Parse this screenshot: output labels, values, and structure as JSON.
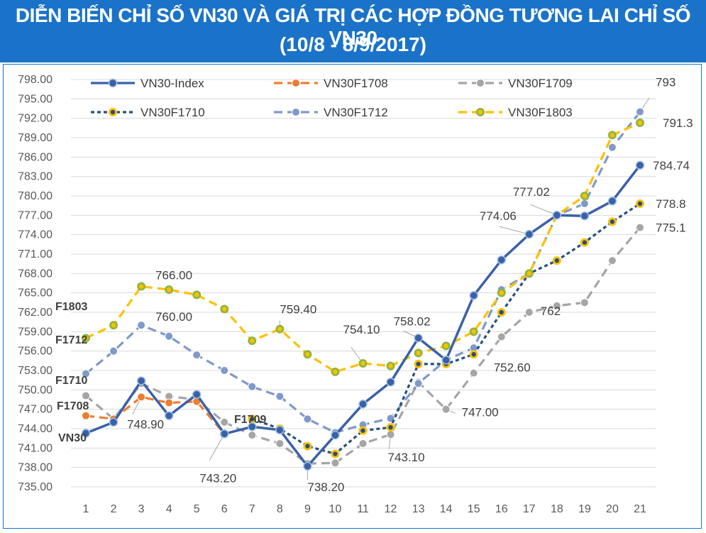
{
  "header": {
    "title_line1": "DIỄN BIẾN CHỈ SỐ VN30 VÀ GIÁ TRỊ CÁC HỢP ĐỒNG TƯƠNG LAI CHỈ SỐ VN30",
    "title_line2": "(10/8 - 8/9/2017)"
  },
  "colors": {
    "header_bg": "#1a73c8",
    "vn30": "#3a61a8",
    "f1708": "#ed7d31",
    "f1709": "#a5a5a5",
    "f1710": "#26507f",
    "f1712": "#7f99c9",
    "f1803": "#ffc000"
  },
  "chart_data": {
    "type": "line",
    "x": [
      1,
      2,
      3,
      4,
      5,
      6,
      7,
      8,
      9,
      10,
      11,
      12,
      13,
      14,
      15,
      16,
      17,
      18,
      19,
      20,
      21
    ],
    "ylim": [
      735,
      798
    ],
    "yticks": [
      "735.00",
      "738.00",
      "741.00",
      "744.00",
      "747.00",
      "750.00",
      "753.00",
      "756.00",
      "759.00",
      "762.00",
      "765.00",
      "768.00",
      "771.00",
      "774.00",
      "777.00",
      "780.00",
      "783.00",
      "786.00",
      "789.00",
      "792.00",
      "795.00",
      "798.00"
    ],
    "xticks": [
      "1",
      "2",
      "3",
      "4",
      "5",
      "6",
      "7",
      "8",
      "9",
      "10",
      "11",
      "12",
      "13",
      "14",
      "15",
      "16",
      "17",
      "18",
      "19",
      "20",
      "21"
    ],
    "legend_position": "top",
    "grid": "horizontal",
    "series": [
      {
        "name": "VN30-Index",
        "key": "vn30",
        "style": "solid",
        "values": [
          743.3,
          745.0,
          751.4,
          746.0,
          749.3,
          743.2,
          744.3,
          743.8,
          738.2,
          743.0,
          747.8,
          751.2,
          758.02,
          754.6,
          764.6,
          770.1,
          774.06,
          777.02,
          776.9,
          779.2,
          784.74
        ]
      },
      {
        "name": "VN30F1708",
        "key": "f1708",
        "style": "dash",
        "values": [
          746.0,
          745.5,
          748.9,
          748.0,
          748.2,
          743.2,
          null,
          null,
          null,
          null,
          null,
          null,
          null,
          null,
          null,
          null,
          null,
          null,
          null,
          null,
          null
        ]
      },
      {
        "name": "VN30F1709",
        "key": "f1709",
        "style": "dash",
        "values": [
          749.1,
          745.5,
          751.0,
          749.0,
          748.5,
          745.0,
          743.0,
          741.7,
          738.6,
          738.7,
          741.7,
          743.1,
          751.2,
          747.0,
          752.6,
          758.2,
          762.0,
          763.0,
          763.5,
          770.0,
          775.1
        ]
      },
      {
        "name": "VN30F1710",
        "key": "f1710",
        "style": "dot",
        "values": [
          null,
          null,
          null,
          null,
          null,
          null,
          745.5,
          744.0,
          741.3,
          740.1,
          743.7,
          744.2,
          754.0,
          754.0,
          755.5,
          762.0,
          768.0,
          770.0,
          772.8,
          776.0,
          778.8
        ]
      },
      {
        "name": "VN30F1712",
        "key": "f1712",
        "style": "dash",
        "values": [
          752.5,
          756.0,
          760.0,
          758.3,
          755.4,
          753.0,
          750.5,
          749.0,
          745.5,
          743.4,
          744.6,
          745.6,
          751.0,
          754.6,
          756.5,
          765.5,
          768.0,
          777.0,
          778.8,
          787.5,
          793.0
        ]
      },
      {
        "name": "VN30F1803",
        "key": "f1803",
        "style": "dash",
        "values": [
          758.0,
          760.0,
          766.0,
          765.5,
          764.7,
          762.5,
          757.6,
          759.4,
          755.5,
          752.8,
          754.1,
          753.7,
          755.7,
          756.8,
          759.0,
          765.0,
          768.0,
          777.0,
          780.0,
          789.4,
          791.3
        ]
      }
    ],
    "annotations": [
      {
        "text": "766.00",
        "x": 3,
        "y": 766.0
      },
      {
        "text": "760.00",
        "x": 3,
        "y": 760.0
      },
      {
        "text": "748.90",
        "x": 3,
        "y": 748.9
      },
      {
        "text": "743.20",
        "x": 6,
        "y": 743.2
      },
      {
        "text": "759.40",
        "x": 8,
        "y": 759.4
      },
      {
        "text": "738.20",
        "x": 9,
        "y": 738.2
      },
      {
        "text": "754.10",
        "x": 11,
        "y": 754.1
      },
      {
        "text": "743.10",
        "x": 12,
        "y": 743.1
      },
      {
        "text": "758.02",
        "x": 13,
        "y": 758.02
      },
      {
        "text": "747.00",
        "x": 14,
        "y": 747.0
      },
      {
        "text": "752.60",
        "x": 15,
        "y": 752.6
      },
      {
        "text": "774.06",
        "x": 17,
        "y": 774.06
      },
      {
        "text": "777.02",
        "x": 18,
        "y": 777.02
      },
      {
        "text": "762",
        "x": 17,
        "y": 762.0
      },
      {
        "text": "793",
        "x": 21,
        "y": 793.0
      },
      {
        "text": "791.3",
        "x": 21,
        "y": 791.3
      },
      {
        "text": "784.74",
        "x": 21,
        "y": 784.74
      },
      {
        "text": "778.8",
        "x": 21,
        "y": 778.8
      },
      {
        "text": "775.1",
        "x": 21,
        "y": 775.1
      }
    ],
    "series_labels": [
      {
        "text": "F1803",
        "key": "f1803"
      },
      {
        "text": "F1712",
        "key": "f1712"
      },
      {
        "text": "F1710",
        "key": "f1710"
      },
      {
        "text": "F1708",
        "key": "f1708"
      },
      {
        "text": "VN30",
        "key": "vn30"
      },
      {
        "text": "F1709",
        "key": "f1709"
      }
    ]
  }
}
